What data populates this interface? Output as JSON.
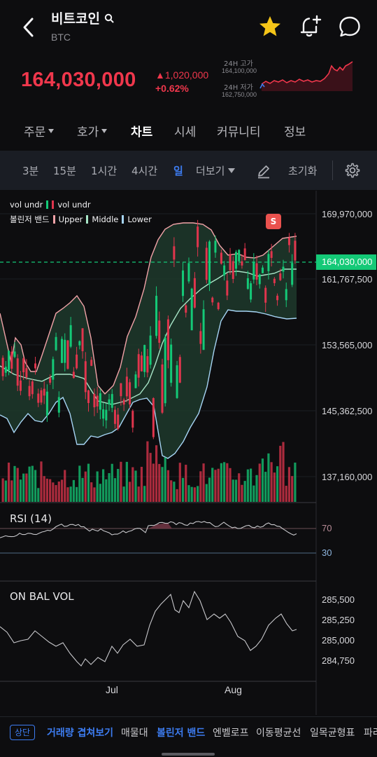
{
  "header": {
    "coin_name": "비트코인",
    "coin_code": "BTC"
  },
  "price": {
    "current": "164,030,000",
    "change_abs": "▲1,020,000",
    "change_pct": "+0.62%",
    "high_label": "24H 고가",
    "high_value": "164,100,000",
    "low_label": "24H 저가",
    "low_value": "162,750,000",
    "color": "#f0374c"
  },
  "tabs": [
    {
      "label": "주문",
      "dropdown": true
    },
    {
      "label": "호가",
      "dropdown": true
    },
    {
      "label": "차트",
      "active": true
    },
    {
      "label": "시세"
    },
    {
      "label": "커뮤니티"
    },
    {
      "label": "정보"
    }
  ],
  "toolbar": {
    "intervals": [
      "3분",
      "15분",
      "1시간",
      "4시간",
      "일"
    ],
    "active_interval": "일",
    "more": "더보기",
    "reset": "초기화"
  },
  "chart": {
    "legend_vol": "vol undr",
    "legend_vol2": "vol undr",
    "legend_bb": "볼린저 밴드",
    "legend_upper": "Upper",
    "legend_middle": "Middle",
    "legend_lower": "Lower",
    "price_ticks": [
      "169,970,000",
      "161,767,500",
      "153,565,000",
      "145,362,500",
      "137,160,000"
    ],
    "current_price_tag": "164,030,000",
    "signal_badge": "S",
    "rsi_label": "RSI (14)",
    "rsi_ticks": [
      "70",
      "30"
    ],
    "obv_label": "ON BAL VOL",
    "obv_ticks": [
      "285,500",
      "285,250",
      "285,000",
      "284,750"
    ],
    "dates": [
      "Jul",
      "Aug"
    ],
    "up_color": "#14c977",
    "down_color": "#e0354d"
  },
  "indicators": {
    "pill": "상단",
    "items": [
      "거래량 겹쳐보기",
      "매물대",
      "볼린저 밴드",
      "엔벨로프",
      "이동평균선",
      "일목균형표",
      "파라"
    ],
    "active": [
      "거래량 겹쳐보기",
      "볼린저 밴드"
    ]
  }
}
